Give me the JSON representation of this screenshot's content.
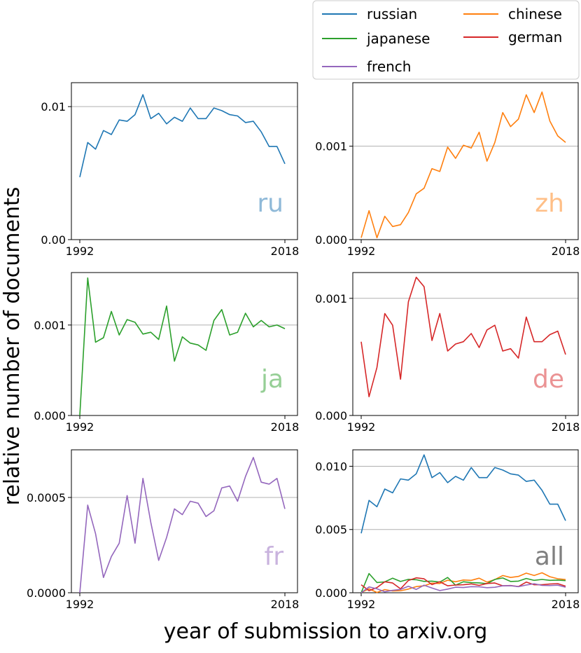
{
  "figure": {
    "ylabel": "relative number of documents",
    "xlabel": "year of submission to arxiv.org"
  },
  "legend": {
    "entries": [
      {
        "name": "russian",
        "color": "#1f77b4"
      },
      {
        "name": "chinese",
        "color": "#ff7f0e"
      },
      {
        "name": "japanese",
        "color": "#2ca02c"
      },
      {
        "name": "german",
        "color": "#d62728"
      },
      {
        "name": "french",
        "color": "#9467bd"
      }
    ]
  },
  "chart_data": [
    {
      "type": "line",
      "tag": "ru",
      "color": "#1f77b4",
      "tag_color": "#8fb9d8",
      "x_start": 1992,
      "x_end": 2018,
      "xticks": [
        "1992",
        "2018"
      ],
      "ylim": [
        0,
        0.0118
      ],
      "yticks": [
        0,
        0.01
      ],
      "ytick_labels": [
        "0.00",
        "0.01"
      ],
      "grid": "horizontal",
      "series": [
        {
          "name": "russian",
          "color": "#1f77b4",
          "values": [
            0.0047,
            0.0073,
            0.0068,
            0.0082,
            0.0079,
            0.009,
            0.0089,
            0.0094,
            0.0109,
            0.0091,
            0.0095,
            0.0087,
            0.0092,
            0.0089,
            0.0099,
            0.0091,
            0.0091,
            0.0099,
            0.0097,
            0.0094,
            0.0093,
            0.0088,
            0.0089,
            0.0081,
            0.007,
            0.007,
            0.0057
          ]
        }
      ]
    },
    {
      "type": "line",
      "tag": "zh",
      "color": "#ff7f0e",
      "tag_color": "#ffbf87",
      "x_start": 1992,
      "x_end": 2018,
      "xticks": [
        "1992",
        "2018"
      ],
      "ylim": [
        0,
        0.00168
      ],
      "yticks": [
        0,
        0.001
      ],
      "ytick_labels": [
        "0.000",
        "0.001"
      ],
      "grid": "horizontal",
      "series": [
        {
          "name": "chinese",
          "color": "#ff7f0e",
          "values": [
            2e-05,
            0.00031,
            2e-05,
            0.00025,
            0.00014,
            0.00016,
            0.00029,
            0.00049,
            0.00055,
            0.00076,
            0.00073,
            0.00099,
            0.00087,
            0.00101,
            0.00098,
            0.00115,
            0.00084,
            0.00104,
            0.00136,
            0.00121,
            0.00129,
            0.00155,
            0.00136,
            0.00158,
            0.00127,
            0.00111,
            0.00104
          ]
        }
      ]
    },
    {
      "type": "line",
      "tag": "ja",
      "color": "#2ca02c",
      "tag_color": "#96cf96",
      "x_start": 1992,
      "x_end": 2018,
      "xticks": [
        "1992",
        "2018"
      ],
      "ylim": [
        0,
        0.00158
      ],
      "yticks": [
        0,
        0.001
      ],
      "ytick_labels": [
        "0.000",
        "0.001"
      ],
      "grid": "horizontal",
      "series": [
        {
          "name": "japanese",
          "color": "#2ca02c",
          "values": [
            0.0,
            0.00152,
            0.00081,
            0.00086,
            0.00115,
            0.00089,
            0.00106,
            0.00103,
            0.0009,
            0.00092,
            0.00084,
            0.00121,
            0.0006,
            0.00087,
            0.0008,
            0.00078,
            0.00072,
            0.00105,
            0.00117,
            0.00089,
            0.00092,
            0.00113,
            0.00098,
            0.00105,
            0.00098,
            0.001,
            0.00096
          ]
        }
      ]
    },
    {
      "type": "line",
      "tag": "de",
      "color": "#d62728",
      "tag_color": "#eb9394",
      "x_start": 1992,
      "x_end": 2018,
      "xticks": [
        "1992",
        "2018"
      ],
      "ylim": [
        0,
        0.00122
      ],
      "yticks": [
        0,
        0.001
      ],
      "ytick_labels": [
        "0.000",
        "0.001"
      ],
      "grid": "horizontal",
      "series": [
        {
          "name": "german",
          "color": "#d62728",
          "values": [
            0.00063,
            0.00016,
            0.00041,
            0.00087,
            0.00077,
            0.00031,
            0.00097,
            0.00118,
            0.0011,
            0.00064,
            0.00087,
            0.00055,
            0.00061,
            0.00063,
            0.0007,
            0.00058,
            0.00073,
            0.00077,
            0.00055,
            0.00057,
            0.00049,
            0.00084,
            0.00063,
            0.00063,
            0.00069,
            0.00072,
            0.00052
          ]
        }
      ]
    },
    {
      "type": "line",
      "tag": "fr",
      "color": "#9467bd",
      "tag_color": "#c9b3de",
      "x_start": 1992,
      "x_end": 2018,
      "xticks": [
        "1992",
        "2018"
      ],
      "ylim": [
        0,
        0.00075
      ],
      "yticks": [
        0,
        0.0005
      ],
      "ytick_labels": [
        "0.0000",
        "0.0005"
      ],
      "grid": "horizontal",
      "series": [
        {
          "name": "french",
          "color": "#9467bd",
          "values": [
            0.0,
            0.00046,
            0.00031,
            8e-05,
            0.00019,
            0.00026,
            0.00051,
            0.00026,
            0.0006,
            0.00037,
            0.00017,
            0.00029,
            0.00044,
            0.00041,
            0.00048,
            0.00047,
            0.0004,
            0.00043,
            0.00055,
            0.00056,
            0.00048,
            0.00061,
            0.00071,
            0.00058,
            0.00057,
            0.0006,
            0.00044
          ]
        }
      ]
    },
    {
      "type": "line",
      "tag": "all",
      "color": "#7f7f7f",
      "tag_color": "#7f7f7f",
      "x_start": 1992,
      "x_end": 2018,
      "xticks": [
        "1992",
        "2018"
      ],
      "ylim": [
        0,
        0.0113
      ],
      "yticks": [
        0,
        0.005,
        0.01
      ],
      "ytick_labels": [
        "0.000",
        "0.005",
        "0.010"
      ],
      "grid": "horizontal",
      "series": [
        {
          "name": "russian",
          "color": "#1f77b4",
          "values": [
            0.0047,
            0.0073,
            0.0068,
            0.0082,
            0.0079,
            0.009,
            0.0089,
            0.0094,
            0.0109,
            0.0091,
            0.0095,
            0.0087,
            0.0092,
            0.0089,
            0.0099,
            0.0091,
            0.0091,
            0.0099,
            0.0097,
            0.0094,
            0.0093,
            0.0088,
            0.0089,
            0.0081,
            0.007,
            0.007,
            0.0057
          ]
        },
        {
          "name": "chinese",
          "color": "#ff7f0e",
          "values": [
            2e-05,
            0.00031,
            2e-05,
            0.00025,
            0.00014,
            0.00016,
            0.00029,
            0.00049,
            0.00055,
            0.00076,
            0.00073,
            0.00099,
            0.00087,
            0.00101,
            0.00098,
            0.00115,
            0.00084,
            0.00104,
            0.00136,
            0.00121,
            0.00129,
            0.00155,
            0.00136,
            0.00158,
            0.00127,
            0.00111,
            0.00104
          ]
        },
        {
          "name": "japanese",
          "color": "#2ca02c",
          "values": [
            0.0,
            0.00152,
            0.00081,
            0.00086,
            0.00115,
            0.00089,
            0.00106,
            0.00103,
            0.0009,
            0.00092,
            0.00084,
            0.00121,
            0.0006,
            0.00087,
            0.0008,
            0.00078,
            0.00072,
            0.00105,
            0.00117,
            0.00089,
            0.00092,
            0.00113,
            0.00098,
            0.00105,
            0.00098,
            0.001,
            0.00096
          ]
        },
        {
          "name": "german",
          "color": "#d62728",
          "values": [
            0.00063,
            0.00016,
            0.00041,
            0.00087,
            0.00077,
            0.00031,
            0.00097,
            0.00118,
            0.0011,
            0.00064,
            0.00087,
            0.00055,
            0.00061,
            0.00063,
            0.0007,
            0.00058,
            0.00073,
            0.00077,
            0.00055,
            0.00057,
            0.00049,
            0.00084,
            0.00063,
            0.00063,
            0.00069,
            0.00072,
            0.00052
          ]
        },
        {
          "name": "french",
          "color": "#9467bd",
          "values": [
            0.0,
            0.00046,
            0.00031,
            8e-05,
            0.00019,
            0.00026,
            0.00051,
            0.00026,
            0.0006,
            0.00037,
            0.00017,
            0.00029,
            0.00044,
            0.00041,
            0.00048,
            0.00047,
            0.0004,
            0.00043,
            0.00055,
            0.00056,
            0.00048,
            0.00061,
            0.00071,
            0.00058,
            0.00057,
            0.0006,
            0.00044
          ]
        }
      ]
    }
  ]
}
